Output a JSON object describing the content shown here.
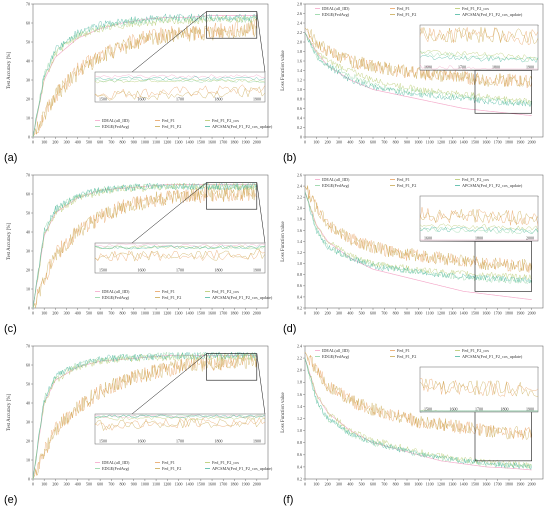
{
  "panels": [
    {
      "label": "(a)",
      "ylabel": "Test Accuracy [%]",
      "metric": "accuracy",
      "ylim": [
        0,
        70
      ],
      "yticks": [
        "0",
        "10",
        "20",
        "30",
        "40",
        "50",
        "60",
        "70"
      ],
      "legend": [
        "IDEAL(all_IID)",
        "EDGE(FedAvg)",
        "Fed_F1",
        "Fed_F1_F2",
        "Fed_F1_F2_cos",
        "APCSMA(Fed_F1_F2_cos_update)"
      ],
      "inset_xticks": [
        "1500",
        "1600",
        "1700",
        "1800",
        "1900"
      ]
    },
    {
      "label": "(b)",
      "ylabel": "Loss Function value",
      "metric": "loss",
      "ylim": [
        0,
        2.8
      ],
      "yticks": [
        "0",
        "0.2",
        "0.4",
        "0.6",
        "0.8",
        "1.0",
        "1.2",
        "1.4",
        "1.6",
        "1.8",
        "2.0",
        "2.2",
        "2.4",
        "2.6",
        "2.8"
      ],
      "legend": [
        "IDEAL(all_IID)",
        "EDGE(FedAvg)",
        "Fed_F1",
        "Fed_F1_F2",
        "Fed_F1_F2_cos",
        "APCSMA(Fed_F1_F2_cos_update)"
      ],
      "inset_xticks": [
        "1600",
        "1700",
        "1800",
        "1900"
      ]
    },
    {
      "label": "(c)",
      "ylabel": "Test Accuracy [%]",
      "metric": "accuracy",
      "ylim": [
        0,
        70
      ],
      "yticks": [
        "0",
        "10",
        "20",
        "30",
        "40",
        "50",
        "60",
        "70"
      ],
      "legend": [
        "IDEAL(all_IID)",
        "EDGE(FedAvg)",
        "Fed_F1",
        "Fed_F1_F2",
        "Fed_F1_F2_cos",
        "APCSMA(Fed_F1_F2_cos_update)"
      ],
      "inset_xticks": [
        "1500",
        "1600",
        "1700",
        "1800",
        "1900"
      ]
    },
    {
      "label": "(d)",
      "ylabel": "Loss Function value",
      "metric": "loss",
      "ylim": [
        0.2,
        2.6
      ],
      "yticks": [
        "0.2",
        "0.4",
        "0.6",
        "0.8",
        "1.0",
        "1.2",
        "1.4",
        "1.6",
        "1.8",
        "2.0",
        "2.2",
        "2.4",
        "2.6"
      ],
      "legend": [
        "IDEAL(all_IID)",
        "EDGE(FedAvg)",
        "Fed_F1",
        "Fed_F1_F2",
        "Fed_F1_F2_cos",
        "APCSMA(Fed_F1_F2_cos_update)"
      ],
      "inset_xticks": [
        "1600",
        "1800",
        "2000"
      ]
    },
    {
      "label": "(e)",
      "ylabel": "Test Accuracy [%]",
      "metric": "accuracy",
      "ylim": [
        0,
        70
      ],
      "yticks": [
        "0",
        "10",
        "20",
        "30",
        "40",
        "50",
        "60",
        "70"
      ],
      "legend": [
        "IDEAL(all_IID)",
        "EDGE(FedAvg)",
        "Fed_F1",
        "Fed_F1_F2",
        "Fed_F1_F2_cos",
        "APCSMA(Fed_F1_F2_cos_update)"
      ],
      "inset_xticks": [
        "1500",
        "1600",
        "1700",
        "1800",
        "1900"
      ]
    },
    {
      "label": "(f)",
      "ylabel": "Loss Function value",
      "metric": "loss",
      "ylim": [
        0.2,
        2.4
      ],
      "yticks": [
        "0.2",
        "0.4",
        "0.6",
        "0.8",
        "1.0",
        "1.2",
        "1.4",
        "1.6",
        "1.8",
        "2.0",
        "2.2",
        "2.4"
      ],
      "legend": [
        "IDEAL(all_IID)",
        "EDGE(FedAvg)",
        "Fed_F1",
        "Fed_F1_F2",
        "Fed_F1_F2_cos",
        "APCSMA(Fed_F1_F2_cos_update)"
      ],
      "inset_xticks": [
        "1500",
        "1600",
        "1700",
        "1800",
        "1900"
      ]
    }
  ],
  "x_ticks": [
    "0",
    "100",
    "200",
    "300",
    "400",
    "500",
    "600",
    "700",
    "800",
    "900",
    "1000",
    "1100",
    "1200",
    "1300",
    "1400",
    "1500",
    "1600",
    "1700",
    "1800",
    "1900",
    "2000"
  ],
  "colors": {
    "IDEAL(all_IID)": "#f4a6c8",
    "EDGE(FedAvg)": "#8fd3a0",
    "Fed_F1": "#e8a060",
    "Fed_F1_F2": "#c8a850",
    "Fed_F1_F2_cos": "#b6c86a",
    "APCSMA(Fed_F1_F2_cos_update)": "#4ab6a0"
  },
  "chart_data": [
    {
      "type": "line",
      "ylabel": "Test Accuracy [%]",
      "ylim": [
        0,
        70
      ],
      "x": [
        0,
        100,
        200,
        400,
        600,
        800,
        1000,
        1200,
        1400,
        1600,
        1800,
        2000
      ],
      "series": [
        {
          "name": "IDEAL(all_IID)",
          "values": [
            0,
            30,
            42,
            52,
            57,
            60,
            62,
            63,
            63,
            64,
            64,
            64
          ]
        },
        {
          "name": "EDGE(FedAvg)",
          "values": [
            0,
            33,
            45,
            54,
            58,
            60,
            61,
            62,
            62,
            62,
            62,
            62
          ]
        },
        {
          "name": "Fed_F1",
          "values": [
            0,
            12,
            22,
            35,
            43,
            48,
            52,
            54,
            55,
            56,
            57,
            58
          ]
        },
        {
          "name": "Fed_F1_F2",
          "values": [
            0,
            12,
            22,
            34,
            42,
            47,
            51,
            53,
            54,
            55,
            56,
            57
          ]
        },
        {
          "name": "Fed_F1_F2_cos",
          "values": [
            0,
            30,
            44,
            53,
            57,
            59,
            60,
            61,
            61,
            62,
            62,
            62
          ]
        },
        {
          "name": "APCSMA(Fed_F1_F2_cos_update)",
          "values": [
            0,
            32,
            46,
            55,
            59,
            61,
            62,
            63,
            63,
            63,
            63,
            63
          ]
        }
      ]
    },
    {
      "type": "line",
      "ylabel": "Loss Function value",
      "ylim": [
        0,
        2.8
      ],
      "x": [
        0,
        100,
        200,
        400,
        600,
        800,
        1000,
        1200,
        1400,
        1600,
        1800,
        2000
      ],
      "series": [
        {
          "name": "IDEAL(all_IID)",
          "values": [
            2.2,
            1.8,
            1.5,
            1.2,
            1.0,
            0.9,
            0.8,
            0.7,
            0.6,
            0.55,
            0.5,
            0.45
          ]
        },
        {
          "name": "EDGE(FedAvg)",
          "values": [
            2.2,
            1.7,
            1.5,
            1.3,
            1.1,
            1.0,
            0.95,
            0.9,
            0.85,
            0.8,
            0.75,
            0.7
          ]
        },
        {
          "name": "Fed_F1",
          "values": [
            2.3,
            2.0,
            1.8,
            1.6,
            1.5,
            1.4,
            1.35,
            1.3,
            1.25,
            1.2,
            1.2,
            1.15
          ]
        },
        {
          "name": "Fed_F1_F2",
          "values": [
            2.3,
            2.0,
            1.8,
            1.6,
            1.5,
            1.4,
            1.35,
            1.3,
            1.25,
            1.2,
            1.2,
            1.15
          ]
        },
        {
          "name": "Fed_F1_F2_cos",
          "values": [
            2.2,
            1.8,
            1.6,
            1.4,
            1.2,
            1.1,
            1.0,
            0.95,
            0.9,
            0.85,
            0.8,
            0.75
          ]
        },
        {
          "name": "APCSMA(Fed_F1_F2_cos_update)",
          "values": [
            2.2,
            1.7,
            1.5,
            1.2,
            1.05,
            0.95,
            0.9,
            0.85,
            0.8,
            0.75,
            0.72,
            0.7
          ]
        }
      ]
    },
    {
      "type": "line",
      "ylabel": "Test Accuracy [%]",
      "ylim": [
        0,
        70
      ],
      "x": [
        0,
        100,
        200,
        400,
        600,
        800,
        1000,
        1200,
        1400,
        1600,
        1800,
        2000
      ],
      "series": [
        {
          "name": "IDEAL(all_IID)",
          "values": [
            0,
            38,
            50,
            58,
            62,
            63,
            64,
            65,
            65,
            65,
            65,
            65
          ]
        },
        {
          "name": "EDGE(FedAvg)",
          "values": [
            0,
            40,
            52,
            59,
            62,
            63,
            64,
            64,
            64,
            64,
            64,
            64
          ]
        },
        {
          "name": "Fed_F1",
          "values": [
            0,
            15,
            28,
            40,
            48,
            53,
            56,
            58,
            59,
            60,
            60,
            61
          ]
        },
        {
          "name": "Fed_F1_F2",
          "values": [
            0,
            15,
            28,
            40,
            48,
            53,
            56,
            58,
            59,
            60,
            60,
            61
          ]
        },
        {
          "name": "Fed_F1_F2_cos",
          "values": [
            0,
            38,
            50,
            58,
            61,
            63,
            63,
            64,
            64,
            64,
            64,
            64
          ]
        },
        {
          "name": "APCSMA(Fed_F1_F2_cos_update)",
          "values": [
            0,
            40,
            52,
            59,
            62,
            63,
            64,
            64,
            64,
            64,
            64,
            64
          ]
        }
      ]
    },
    {
      "type": "line",
      "ylabel": "Loss Function value",
      "ylim": [
        0.2,
        2.6
      ],
      "x": [
        0,
        100,
        200,
        400,
        600,
        800,
        1000,
        1200,
        1400,
        1600,
        1800,
        2000
      ],
      "series": [
        {
          "name": "IDEAL(all_IID)",
          "values": [
            2.3,
            1.7,
            1.4,
            1.1,
            0.9,
            0.8,
            0.7,
            0.6,
            0.5,
            0.45,
            0.4,
            0.35
          ]
        },
        {
          "name": "EDGE(FedAvg)",
          "values": [
            2.3,
            1.6,
            1.3,
            1.1,
            1.0,
            0.9,
            0.85,
            0.8,
            0.75,
            0.72,
            0.7,
            0.68
          ]
        },
        {
          "name": "Fed_F1",
          "values": [
            2.4,
            2.0,
            1.7,
            1.45,
            1.3,
            1.2,
            1.15,
            1.1,
            1.05,
            1.0,
            0.98,
            0.95
          ]
        },
        {
          "name": "Fed_F1_F2",
          "values": [
            2.4,
            2.0,
            1.7,
            1.45,
            1.3,
            1.2,
            1.15,
            1.1,
            1.05,
            1.0,
            0.98,
            0.95
          ]
        },
        {
          "name": "Fed_F1_F2_cos",
          "values": [
            2.3,
            1.7,
            1.4,
            1.15,
            1.0,
            0.95,
            0.9,
            0.85,
            0.82,
            0.8,
            0.78,
            0.75
          ]
        },
        {
          "name": "APCSMA(Fed_F1_F2_cos_update)",
          "values": [
            2.3,
            1.6,
            1.3,
            1.1,
            0.95,
            0.9,
            0.85,
            0.8,
            0.77,
            0.74,
            0.72,
            0.7
          ]
        }
      ]
    },
    {
      "type": "line",
      "ylabel": "Test Accuracy [%]",
      "ylim": [
        0,
        70
      ],
      "x": [
        0,
        100,
        200,
        400,
        600,
        800,
        1000,
        1200,
        1400,
        1600,
        1800,
        2000
      ],
      "series": [
        {
          "name": "IDEAL(all_IID)",
          "values": [
            0,
            40,
            52,
            59,
            62,
            63,
            64,
            65,
            65,
            65,
            65,
            65
          ]
        },
        {
          "name": "EDGE(FedAvg)",
          "values": [
            0,
            42,
            54,
            60,
            63,
            64,
            64,
            65,
            65,
            65,
            65,
            65
          ]
        },
        {
          "name": "Fed_F1",
          "values": [
            0,
            14,
            26,
            38,
            46,
            51,
            55,
            58,
            60,
            61,
            62,
            62
          ]
        },
        {
          "name": "Fed_F1_F2",
          "values": [
            0,
            14,
            26,
            38,
            46,
            51,
            55,
            58,
            60,
            61,
            62,
            62
          ]
        },
        {
          "name": "Fed_F1_F2_cos",
          "values": [
            0,
            40,
            52,
            59,
            62,
            63,
            64,
            64,
            64,
            64,
            64,
            64
          ]
        },
        {
          "name": "APCSMA(Fed_F1_F2_cos_update)",
          "values": [
            0,
            42,
            54,
            60,
            63,
            64,
            64,
            65,
            65,
            65,
            65,
            65
          ]
        }
      ]
    },
    {
      "type": "line",
      "ylabel": "Loss Function value",
      "ylim": [
        0.2,
        2.4
      ],
      "x": [
        0,
        100,
        200,
        400,
        600,
        800,
        1000,
        1200,
        1400,
        1600,
        1800,
        2000
      ],
      "series": [
        {
          "name": "IDEAL(all_IID)",
          "values": [
            2.2,
            1.6,
            1.3,
            1.0,
            0.8,
            0.7,
            0.6,
            0.5,
            0.45,
            0.4,
            0.38,
            0.35
          ]
        },
        {
          "name": "EDGE(FedAvg)",
          "values": [
            2.2,
            1.5,
            1.2,
            0.95,
            0.8,
            0.7,
            0.62,
            0.55,
            0.5,
            0.45,
            0.42,
            0.4
          ]
        },
        {
          "name": "Fed_F1",
          "values": [
            2.3,
            2.0,
            1.75,
            1.5,
            1.35,
            1.25,
            1.15,
            1.1,
            1.05,
            1.0,
            0.97,
            0.95
          ]
        },
        {
          "name": "Fed_F1_F2",
          "values": [
            2.3,
            2.0,
            1.75,
            1.5,
            1.35,
            1.25,
            1.15,
            1.1,
            1.05,
            1.0,
            0.97,
            0.95
          ]
        },
        {
          "name": "Fed_F1_F2_cos",
          "values": [
            2.2,
            1.6,
            1.3,
            1.0,
            0.85,
            0.75,
            0.65,
            0.58,
            0.52,
            0.48,
            0.45,
            0.42
          ]
        },
        {
          "name": "APCSMA(Fed_F1_F2_cos_update)",
          "values": [
            2.2,
            1.5,
            1.2,
            0.95,
            0.8,
            0.7,
            0.62,
            0.55,
            0.5,
            0.46,
            0.43,
            0.4
          ]
        }
      ]
    }
  ]
}
